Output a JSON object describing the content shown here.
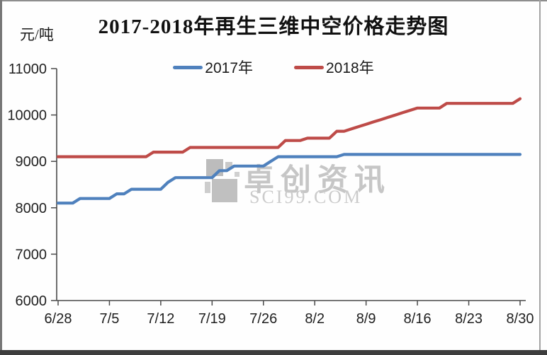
{
  "page": {
    "title": "2017-2018年再生三维中空价格走势图",
    "unit_label": "元/吨"
  },
  "watermark": {
    "brand": "卓创资讯",
    "url": "SCI99.COM"
  },
  "colors": {
    "series_2017": "#4F81BD",
    "series_2018": "#BE4B48",
    "axis": "#4a4a4a",
    "tick_text": "#1f1f1f",
    "watermark_gray": "#c6c6c6",
    "frame_bottom": "#3d3d3d"
  },
  "chart_data": {
    "type": "line",
    "title": "2017-2018年再生三维中空价格走势图",
    "ylabel": "元/吨",
    "xlabel": "",
    "ylim": [
      6000,
      11000
    ],
    "yticks": [
      6000,
      7000,
      8000,
      9000,
      10000,
      11000
    ],
    "grid": false,
    "legend_position": "top-center",
    "x_tick_labels": [
      "6/28",
      "7/5",
      "7/12",
      "7/19",
      "7/26",
      "8/2",
      "8/9",
      "8/16",
      "8/23",
      "8/30"
    ],
    "x": [
      "6/28",
      "6/29",
      "6/30",
      "7/1",
      "7/2",
      "7/3",
      "7/4",
      "7/5",
      "7/6",
      "7/7",
      "7/8",
      "7/9",
      "7/10",
      "7/11",
      "7/12",
      "7/13",
      "7/14",
      "7/15",
      "7/16",
      "7/17",
      "7/18",
      "7/19",
      "7/20",
      "7/21",
      "7/22",
      "7/23",
      "7/24",
      "7/25",
      "7/26",
      "7/27",
      "7/28",
      "7/29",
      "7/30",
      "7/31",
      "8/1",
      "8/2",
      "8/3",
      "8/4",
      "8/5",
      "8/6",
      "8/7",
      "8/8",
      "8/9",
      "8/10",
      "8/11",
      "8/12",
      "8/13",
      "8/14",
      "8/15",
      "8/16",
      "8/17",
      "8/18",
      "8/19",
      "8/20",
      "8/21",
      "8/22",
      "8/23",
      "8/24",
      "8/25",
      "8/26",
      "8/27",
      "8/28",
      "8/29",
      "8/30"
    ],
    "series": [
      {
        "name": "2017年",
        "color": "#4F81BD",
        "values": [
          8100,
          8100,
          8100,
          8200,
          8200,
          8200,
          8200,
          8200,
          8300,
          8300,
          8400,
          8400,
          8400,
          8400,
          8400,
          8550,
          8650,
          8650,
          8650,
          8650,
          8650,
          8650,
          8800,
          8800,
          8900,
          8900,
          8900,
          8900,
          8900,
          9000,
          9100,
          9100,
          9100,
          9100,
          9100,
          9100,
          9100,
          9100,
          9100,
          9150,
          9150,
          9150,
          9150,
          9150,
          9150,
          9150,
          9150,
          9150,
          9150,
          9150,
          9150,
          9150,
          9150,
          9150,
          9150,
          9150,
          9150,
          9150,
          9150,
          9150,
          9150,
          9150,
          9150,
          9150
        ]
      },
      {
        "name": "2018年",
        "color": "#BE4B48",
        "values": [
          9100,
          9100,
          9100,
          9100,
          9100,
          9100,
          9100,
          9100,
          9100,
          9100,
          9100,
          9100,
          9100,
          9200,
          9200,
          9200,
          9200,
          9200,
          9300,
          9300,
          9300,
          9300,
          9300,
          9300,
          9300,
          9300,
          9300,
          9300,
          9300,
          9300,
          9300,
          9450,
          9450,
          9450,
          9500,
          9500,
          9500,
          9500,
          9650,
          9650,
          9700,
          9750,
          9800,
          9850,
          9900,
          9950,
          10000,
          10050,
          10100,
          10150,
          10150,
          10150,
          10150,
          10250,
          10250,
          10250,
          10250,
          10250,
          10250,
          10250,
          10250,
          10250,
          10250,
          10350
        ]
      }
    ]
  }
}
